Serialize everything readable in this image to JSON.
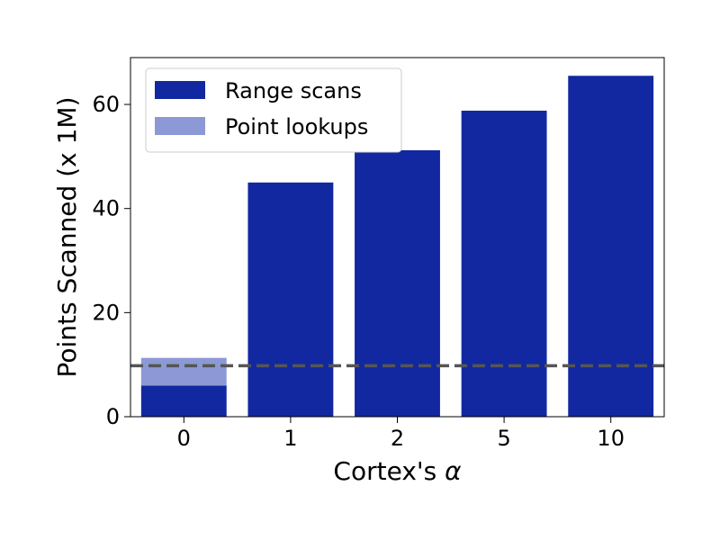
{
  "chart_data": {
    "type": "bar",
    "stacked": true,
    "categories": [
      "0",
      "1",
      "2",
      "5",
      "10"
    ],
    "series": [
      {
        "name": "Range scans",
        "color": "#1228a0",
        "values": [
          6.0,
          45.0,
          51.2,
          58.8,
          65.5
        ]
      },
      {
        "name": "Point lookups",
        "color": "#8c99d6",
        "values": [
          5.3,
          0,
          0,
          0,
          0
        ]
      }
    ],
    "reference_line": {
      "y": 9.8,
      "style": "dashed",
      "color": "#555555"
    },
    "xlabel_prefix": "Cortex's ",
    "xlabel_symbol": "α",
    "ylabel": "Points Scanned (x 1M)",
    "ylim": [
      0,
      69
    ],
    "yticks": [
      0,
      20,
      40,
      60
    ],
    "grid": false,
    "legend_position": "top-left"
  }
}
